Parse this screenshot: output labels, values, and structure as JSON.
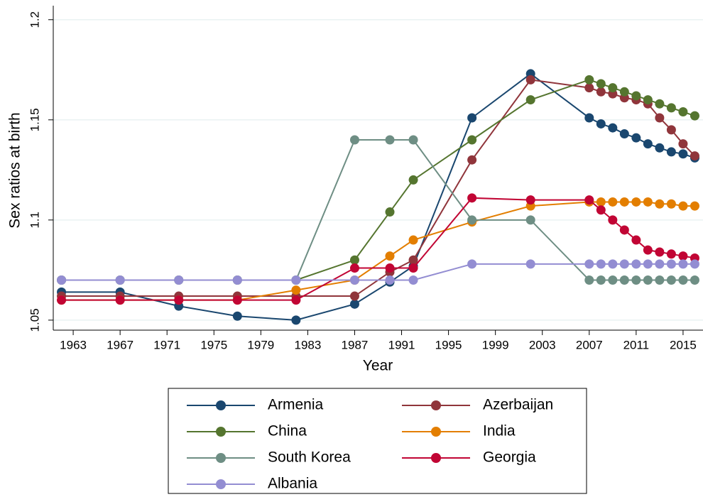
{
  "chart_data": {
    "type": "line",
    "xlabel": "Year",
    "ylabel": "Sex ratios at birth",
    "x": [
      1962,
      1967,
      1972,
      1977,
      1982,
      1987,
      1990,
      1992,
      1997,
      2002,
      2007,
      2008,
      2009,
      2010,
      2011,
      2012,
      2013,
      2014,
      2015,
      2016
    ],
    "series": [
      {
        "name": "Armenia",
        "color": "#1a476f",
        "values": [
          1.064,
          1.064,
          1.057,
          1.052,
          1.05,
          1.058,
          1.069,
          1.077,
          1.151,
          1.173,
          1.151,
          1.148,
          1.146,
          1.143,
          1.141,
          1.138,
          1.136,
          1.134,
          1.133,
          1.131
        ]
      },
      {
        "name": "Azerbaijan",
        "color": "#90353b",
        "values": [
          1.062,
          1.062,
          1.062,
          1.062,
          1.062,
          1.062,
          1.074,
          1.08,
          1.13,
          1.17,
          1.166,
          1.164,
          1.163,
          1.161,
          1.16,
          1.158,
          1.151,
          1.145,
          1.138,
          1.132
        ]
      },
      {
        "name": "China",
        "color": "#55752f",
        "values": [
          1.07,
          1.07,
          1.07,
          1.07,
          1.07,
          1.08,
          1.104,
          1.12,
          1.14,
          1.16,
          1.17,
          1.168,
          1.166,
          1.164,
          1.162,
          1.16,
          1.158,
          1.156,
          1.154,
          1.152
        ]
      },
      {
        "name": "India",
        "color": "#e37e00",
        "values": [
          1.06,
          1.06,
          1.06,
          1.06,
          1.065,
          1.07,
          1.082,
          1.09,
          1.099,
          1.107,
          1.109,
          1.109,
          1.109,
          1.109,
          1.109,
          1.109,
          1.108,
          1.108,
          1.107,
          1.107
        ]
      },
      {
        "name": "South Korea",
        "color": "#6e8e84",
        "values": [
          1.07,
          1.07,
          1.07,
          1.07,
          1.07,
          1.14,
          1.14,
          1.14,
          1.1,
          1.1,
          1.07,
          1.07,
          1.07,
          1.07,
          1.07,
          1.07,
          1.07,
          1.07,
          1.07,
          1.07
        ]
      },
      {
        "name": "Georgia",
        "color": "#c10534",
        "values": [
          1.06,
          1.06,
          1.06,
          1.06,
          1.06,
          1.076,
          1.076,
          1.076,
          1.111,
          1.11,
          1.11,
          1.105,
          1.1,
          1.095,
          1.09,
          1.085,
          1.084,
          1.083,
          1.082,
          1.081
        ]
      },
      {
        "name": "Albania",
        "color": "#938dd2",
        "values": [
          1.07,
          1.07,
          1.07,
          1.07,
          1.07,
          1.07,
          1.07,
          1.07,
          1.078,
          1.078,
          1.078,
          1.078,
          1.078,
          1.078,
          1.078,
          1.078,
          1.078,
          1.078,
          1.078,
          1.078
        ]
      }
    ],
    "xlim": [
      1961.3,
      2016.7
    ],
    "xticks": [
      1963,
      1967,
      1971,
      1975,
      1979,
      1983,
      1987,
      1991,
      1995,
      1999,
      2003,
      2007,
      2011,
      2015
    ],
    "ylim": [
      1.045,
      1.207
    ],
    "yticks": [
      1.05,
      1.1,
      1.15,
      1.2
    ],
    "grid": true,
    "legend": "bottom"
  }
}
